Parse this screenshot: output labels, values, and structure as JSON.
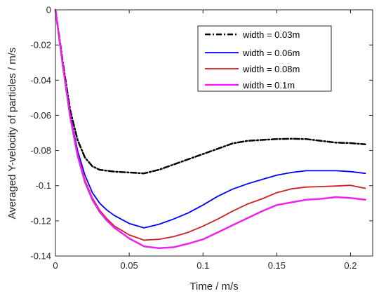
{
  "chart_data": {
    "type": "line",
    "title": "",
    "xlabel": "Time / m/s",
    "ylabel": "Averaged Y-velocity of particles / m/s",
    "xlim": [
      0,
      0.215
    ],
    "ylim": [
      -0.14,
      0
    ],
    "xticks": [
      0,
      0.05,
      0.1,
      0.15,
      0.2
    ],
    "xtick_labels": [
      "0",
      "0.05",
      "0.1",
      "0.15",
      "0.2"
    ],
    "yticks": [
      0,
      -0.02,
      -0.04,
      -0.06,
      -0.08,
      -0.1,
      -0.12,
      -0.14
    ],
    "ytick_labels": [
      "0",
      "-0.02",
      "-0.04",
      "-0.06",
      "-0.08",
      "-0.1",
      "-0.12",
      "-0.14"
    ],
    "grid": false,
    "legend_position": "top-right",
    "series": [
      {
        "name": "width = 0.03m",
        "color": "#000000",
        "dash": "dashdot",
        "x": [
          0,
          0.005,
          0.01,
          0.015,
          0.02,
          0.025,
          0.03,
          0.035,
          0.04,
          0.05,
          0.06,
          0.07,
          0.08,
          0.09,
          0.1,
          0.11,
          0.12,
          0.13,
          0.14,
          0.15,
          0.16,
          0.17,
          0.18,
          0.19,
          0.2,
          0.21
        ],
        "y": [
          0,
          -0.03,
          -0.057,
          -0.074,
          -0.084,
          -0.089,
          -0.091,
          -0.0915,
          -0.092,
          -0.0925,
          -0.093,
          -0.091,
          -0.088,
          -0.085,
          -0.082,
          -0.079,
          -0.076,
          -0.0745,
          -0.074,
          -0.0735,
          -0.0733,
          -0.0735,
          -0.0745,
          -0.0755,
          -0.0758,
          -0.0765
        ]
      },
      {
        "name": "width = 0.06m",
        "color": "#0000ff",
        "dash": "solid",
        "x": [
          0,
          0.005,
          0.01,
          0.015,
          0.02,
          0.025,
          0.03,
          0.035,
          0.04,
          0.05,
          0.06,
          0.07,
          0.08,
          0.09,
          0.1,
          0.11,
          0.12,
          0.13,
          0.14,
          0.15,
          0.16,
          0.17,
          0.18,
          0.19,
          0.2,
          0.21
        ],
        "y": [
          0,
          -0.032,
          -0.06,
          -0.08,
          -0.094,
          -0.104,
          -0.11,
          -0.114,
          -0.117,
          -0.1215,
          -0.124,
          -0.122,
          -0.119,
          -0.1155,
          -0.111,
          -0.106,
          -0.102,
          -0.099,
          -0.0965,
          -0.094,
          -0.0925,
          -0.0915,
          -0.0915,
          -0.0915,
          -0.092,
          -0.093
        ]
      },
      {
        "name": "width = 0.08m",
        "color": "#cc2222",
        "dash": "solid",
        "x": [
          0,
          0.005,
          0.01,
          0.015,
          0.02,
          0.025,
          0.03,
          0.035,
          0.04,
          0.05,
          0.06,
          0.07,
          0.08,
          0.09,
          0.1,
          0.11,
          0.12,
          0.13,
          0.14,
          0.15,
          0.16,
          0.17,
          0.18,
          0.19,
          0.2,
          0.21
        ],
        "y": [
          0,
          -0.032,
          -0.061,
          -0.082,
          -0.097,
          -0.107,
          -0.114,
          -0.119,
          -0.123,
          -0.128,
          -0.131,
          -0.1305,
          -0.129,
          -0.1265,
          -0.123,
          -0.119,
          -0.1145,
          -0.1105,
          -0.1075,
          -0.104,
          -0.1018,
          -0.1008,
          -0.1005,
          -0.1002,
          -0.0998,
          -0.1015
        ]
      },
      {
        "name": "width = 0.1m",
        "color": "#ee22ee",
        "dash": "solid",
        "x": [
          0,
          0.005,
          0.01,
          0.015,
          0.02,
          0.025,
          0.03,
          0.035,
          0.04,
          0.05,
          0.06,
          0.07,
          0.08,
          0.09,
          0.1,
          0.11,
          0.12,
          0.13,
          0.14,
          0.15,
          0.16,
          0.17,
          0.18,
          0.19,
          0.2,
          0.21
        ],
        "y": [
          0,
          -0.032,
          -0.061,
          -0.083,
          -0.098,
          -0.108,
          -0.115,
          -0.12,
          -0.124,
          -0.13,
          -0.1345,
          -0.1355,
          -0.135,
          -0.133,
          -0.1305,
          -0.1265,
          -0.1225,
          -0.1185,
          -0.1145,
          -0.111,
          -0.1095,
          -0.108,
          -0.1075,
          -0.1065,
          -0.107,
          -0.108
        ]
      }
    ]
  }
}
